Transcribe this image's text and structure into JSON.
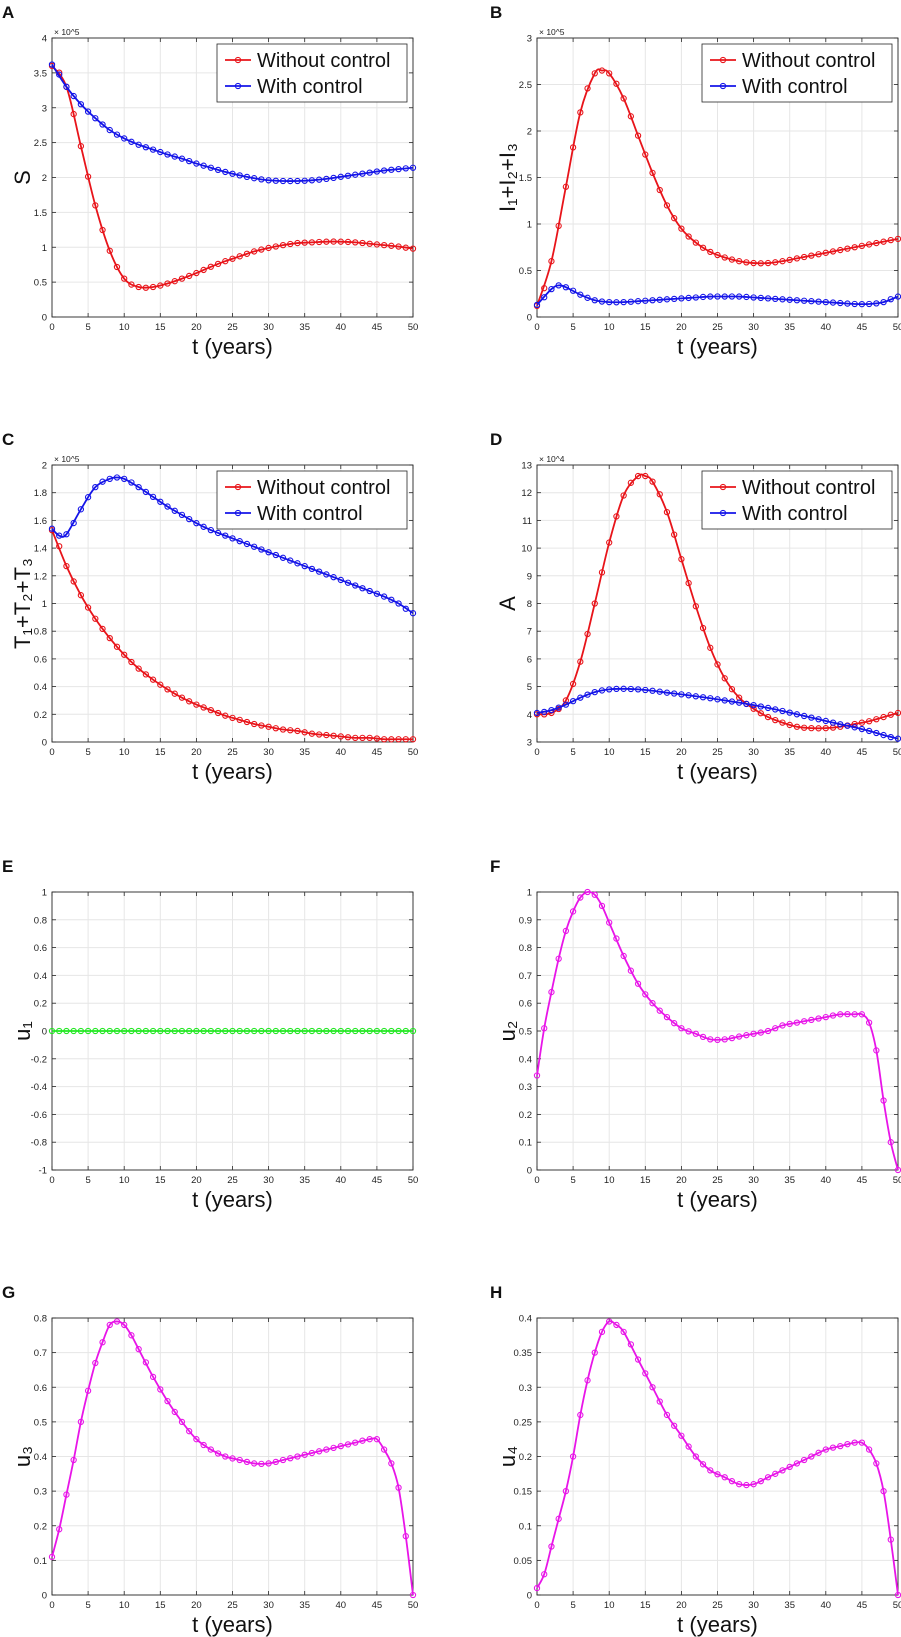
{
  "figure": {
    "panels": [
      "A",
      "B",
      "C",
      "D",
      "E",
      "F",
      "G",
      "H"
    ],
    "colors": {
      "red": "#e8141a",
      "blue": "#1414e8",
      "green": "#22e822",
      "magenta": "#e815e8",
      "grid": "#e6e6e6",
      "axis": "#262626"
    }
  },
  "chart_data": [
    {
      "id": "A",
      "type": "line",
      "panel_label": "A",
      "xlabel": "t (years)",
      "ylabel": "S",
      "y_exponent": "× 10^5",
      "xlim": [
        0,
        50
      ],
      "ylim": [
        0,
        4
      ],
      "xticks": [
        "0",
        "5",
        "10",
        "15",
        "20",
        "25",
        "30",
        "35",
        "40",
        "45",
        "50"
      ],
      "yticks": [
        "0",
        "0.5",
        "1",
        "1.5",
        "2",
        "2.5",
        "3",
        "3.5",
        "4"
      ],
      "legend": [
        "Without control",
        "With control"
      ],
      "series": [
        {
          "name": "Without control",
          "color": "red",
          "x": [
            0,
            2,
            4,
            6,
            8,
            10,
            12,
            14,
            16,
            18,
            20,
            22,
            24,
            26,
            28,
            30,
            32,
            34,
            36,
            38,
            40,
            42,
            44,
            46,
            48,
            50
          ],
          "y": [
            3.6,
            3.3,
            2.45,
            1.6,
            0.95,
            0.55,
            0.43,
            0.43,
            0.48,
            0.55,
            0.63,
            0.72,
            0.8,
            0.87,
            0.94,
            0.99,
            1.03,
            1.06,
            1.07,
            1.08,
            1.08,
            1.07,
            1.05,
            1.03,
            1.01,
            0.98
          ]
        },
        {
          "name": "With control",
          "color": "blue",
          "x": [
            0,
            2,
            4,
            6,
            8,
            10,
            12,
            14,
            16,
            18,
            20,
            22,
            24,
            26,
            28,
            30,
            32,
            34,
            36,
            38,
            40,
            42,
            44,
            46,
            48,
            50
          ],
          "y": [
            3.62,
            3.3,
            3.05,
            2.85,
            2.68,
            2.56,
            2.47,
            2.4,
            2.33,
            2.27,
            2.2,
            2.14,
            2.08,
            2.03,
            1.99,
            1.96,
            1.95,
            1.95,
            1.96,
            1.98,
            2.01,
            2.04,
            2.07,
            2.1,
            2.12,
            2.14
          ]
        }
      ]
    },
    {
      "id": "B",
      "type": "line",
      "panel_label": "B",
      "xlabel": "t (years)",
      "ylabel": "I₁+I₂+I₃",
      "y_exponent": "× 10^5",
      "xlim": [
        0,
        50
      ],
      "ylim": [
        0,
        3
      ],
      "xticks": [
        "0",
        "5",
        "10",
        "15",
        "20",
        "25",
        "30",
        "35",
        "40",
        "45",
        "50"
      ],
      "yticks": [
        "0",
        "0.5",
        "1",
        "1.5",
        "2",
        "2.5",
        "3"
      ],
      "legend": [
        "Without control",
        "With control"
      ],
      "series": [
        {
          "name": "Without control",
          "color": "red",
          "x": [
            0,
            2,
            4,
            6,
            8,
            9,
            10,
            12,
            14,
            16,
            18,
            20,
            22,
            24,
            26,
            28,
            30,
            32,
            34,
            36,
            38,
            40,
            42,
            44,
            46,
            48,
            50
          ],
          "y": [
            0.12,
            0.6,
            1.4,
            2.2,
            2.62,
            2.65,
            2.62,
            2.35,
            1.95,
            1.55,
            1.2,
            0.95,
            0.8,
            0.7,
            0.64,
            0.6,
            0.58,
            0.58,
            0.6,
            0.63,
            0.66,
            0.69,
            0.72,
            0.75,
            0.78,
            0.81,
            0.84
          ]
        },
        {
          "name": "With control",
          "color": "blue",
          "x": [
            0,
            2,
            3,
            4,
            6,
            8,
            10,
            12,
            14,
            16,
            18,
            20,
            22,
            24,
            26,
            28,
            30,
            32,
            34,
            36,
            38,
            40,
            42,
            44,
            46,
            48,
            50
          ],
          "y": [
            0.13,
            0.3,
            0.34,
            0.32,
            0.24,
            0.18,
            0.16,
            0.16,
            0.17,
            0.18,
            0.19,
            0.2,
            0.21,
            0.22,
            0.22,
            0.22,
            0.21,
            0.2,
            0.19,
            0.18,
            0.17,
            0.16,
            0.15,
            0.14,
            0.14,
            0.16,
            0.22
          ]
        }
      ]
    },
    {
      "id": "C",
      "type": "line",
      "panel_label": "C",
      "xlabel": "t (years)",
      "ylabel": "T₁+T₂+T₃",
      "y_exponent": "× 10^5",
      "xlim": [
        0,
        50
      ],
      "ylim": [
        0,
        2
      ],
      "xticks": [
        "0",
        "5",
        "10",
        "15",
        "20",
        "25",
        "30",
        "35",
        "40",
        "45",
        "50"
      ],
      "yticks": [
        "0",
        "0.2",
        "0.4",
        "0.6",
        "0.8",
        "1",
        "1.2",
        "1.4",
        "1.6",
        "1.8",
        "2"
      ],
      "legend": [
        "Without control",
        "With control"
      ],
      "series": [
        {
          "name": "Without control",
          "color": "red",
          "x": [
            0,
            2,
            4,
            6,
            8,
            10,
            12,
            14,
            16,
            18,
            20,
            22,
            24,
            26,
            28,
            30,
            32,
            34,
            36,
            38,
            40,
            42,
            44,
            46,
            48,
            50
          ],
          "y": [
            1.53,
            1.27,
            1.06,
            0.89,
            0.75,
            0.63,
            0.53,
            0.45,
            0.38,
            0.32,
            0.27,
            0.23,
            0.19,
            0.16,
            0.13,
            0.11,
            0.09,
            0.08,
            0.06,
            0.05,
            0.04,
            0.03,
            0.03,
            0.02,
            0.02,
            0.02
          ]
        },
        {
          "name": "With control",
          "color": "blue",
          "x": [
            0,
            1,
            2,
            4,
            6,
            8,
            9,
            10,
            12,
            14,
            16,
            18,
            20,
            22,
            24,
            26,
            28,
            30,
            32,
            34,
            36,
            38,
            40,
            42,
            44,
            46,
            48,
            50
          ],
          "y": [
            1.54,
            1.49,
            1.5,
            1.68,
            1.84,
            1.9,
            1.91,
            1.9,
            1.84,
            1.77,
            1.7,
            1.64,
            1.58,
            1.53,
            1.49,
            1.45,
            1.41,
            1.37,
            1.33,
            1.29,
            1.25,
            1.21,
            1.17,
            1.13,
            1.09,
            1.05,
            1.0,
            0.93
          ]
        }
      ]
    },
    {
      "id": "D",
      "type": "line",
      "panel_label": "D",
      "xlabel": "t (years)",
      "ylabel": "A",
      "y_exponent": "× 10^4",
      "xlim": [
        0,
        50
      ],
      "ylim": [
        3,
        13
      ],
      "xticks": [
        "0",
        "5",
        "10",
        "15",
        "20",
        "25",
        "30",
        "35",
        "40",
        "45",
        "50"
      ],
      "yticks": [
        "3",
        "4",
        "5",
        "6",
        "7",
        "8",
        "9",
        "10",
        "11",
        "12",
        "13"
      ],
      "legend": [
        "Without control",
        "With control"
      ],
      "series": [
        {
          "name": "Without control",
          "color": "red",
          "x": [
            0,
            2,
            4,
            6,
            8,
            10,
            12,
            14,
            15,
            16,
            18,
            20,
            22,
            24,
            26,
            28,
            30,
            32,
            34,
            36,
            38,
            40,
            42,
            44,
            46,
            48,
            50
          ],
          "y": [
            4.0,
            4.05,
            4.5,
            5.9,
            8.0,
            10.2,
            11.9,
            12.6,
            12.6,
            12.4,
            11.3,
            9.6,
            7.9,
            6.4,
            5.3,
            4.6,
            4.2,
            3.9,
            3.7,
            3.55,
            3.5,
            3.5,
            3.55,
            3.65,
            3.75,
            3.9,
            4.05
          ]
        },
        {
          "name": "With control",
          "color": "blue",
          "x": [
            0,
            2,
            4,
            6,
            8,
            10,
            12,
            14,
            16,
            18,
            20,
            22,
            24,
            26,
            28,
            30,
            32,
            34,
            36,
            38,
            40,
            42,
            44,
            46,
            48,
            50
          ],
          "y": [
            4.05,
            4.15,
            4.35,
            4.6,
            4.8,
            4.9,
            4.92,
            4.9,
            4.85,
            4.78,
            4.72,
            4.65,
            4.58,
            4.5,
            4.42,
            4.33,
            4.23,
            4.12,
            4.0,
            3.88,
            3.76,
            3.64,
            3.53,
            3.4,
            3.25,
            3.12
          ]
        }
      ]
    },
    {
      "id": "E",
      "type": "line",
      "panel_label": "E",
      "xlabel": "t (years)",
      "ylabel": "u₁",
      "xlim": [
        0,
        50
      ],
      "ylim": [
        -1,
        1
      ],
      "xticks": [
        "0",
        "5",
        "10",
        "15",
        "20",
        "25",
        "30",
        "35",
        "40",
        "45",
        "50"
      ],
      "yticks": [
        "-1",
        "-0.8",
        "-0.6",
        "-0.4",
        "-0.2",
        "0",
        "0.2",
        "0.4",
        "0.6",
        "0.8",
        "1"
      ],
      "series": [
        {
          "name": "u1",
          "color": "green",
          "x": [
            0,
            2,
            4,
            6,
            8,
            10,
            12,
            14,
            16,
            18,
            20,
            22,
            24,
            26,
            28,
            30,
            32,
            34,
            36,
            38,
            40,
            42,
            44,
            46,
            48,
            50
          ],
          "y": [
            0,
            0,
            0,
            0,
            0,
            0,
            0,
            0,
            0,
            0,
            0,
            0,
            0,
            0,
            0,
            0,
            0,
            0,
            0,
            0,
            0,
            0,
            0,
            0,
            0,
            0
          ]
        }
      ]
    },
    {
      "id": "F",
      "type": "line",
      "panel_label": "F",
      "xlabel": "t (years)",
      "ylabel": "u₂",
      "xlim": [
        0,
        50
      ],
      "ylim": [
        0,
        1
      ],
      "xticks": [
        "0",
        "5",
        "10",
        "15",
        "20",
        "25",
        "30",
        "35",
        "40",
        "45",
        "50"
      ],
      "yticks": [
        "0",
        "0.1",
        "0.2",
        "0.3",
        "0.4",
        "0.5",
        "0.6",
        "0.7",
        "0.8",
        "0.9",
        "1"
      ],
      "series": [
        {
          "name": "u2",
          "color": "magenta",
          "x": [
            0,
            1,
            2,
            3,
            4,
            5,
            6,
            7,
            8,
            9,
            10,
            12,
            14,
            16,
            18,
            20,
            22,
            24,
            26,
            28,
            30,
            32,
            34,
            36,
            38,
            40,
            42,
            44,
            45,
            46,
            47,
            48,
            49,
            50
          ],
          "y": [
            0.34,
            0.51,
            0.64,
            0.76,
            0.86,
            0.93,
            0.98,
            1.0,
            0.99,
            0.95,
            0.89,
            0.77,
            0.67,
            0.6,
            0.55,
            0.51,
            0.49,
            0.47,
            0.47,
            0.48,
            0.49,
            0.5,
            0.52,
            0.53,
            0.54,
            0.55,
            0.56,
            0.56,
            0.56,
            0.53,
            0.43,
            0.25,
            0.1,
            0.0
          ]
        }
      ]
    },
    {
      "id": "G",
      "type": "line",
      "panel_label": "G",
      "xlabel": "t (years)",
      "ylabel": "u₃",
      "xlim": [
        0,
        50
      ],
      "ylim": [
        0,
        0.8
      ],
      "xticks": [
        "0",
        "5",
        "10",
        "15",
        "20",
        "25",
        "30",
        "35",
        "40",
        "45",
        "50"
      ],
      "yticks": [
        "0",
        "0.1",
        "0.2",
        "0.3",
        "0.4",
        "0.5",
        "0.6",
        "0.7",
        "0.8"
      ],
      "series": [
        {
          "name": "u3",
          "color": "magenta",
          "x": [
            0,
            1,
            2,
            3,
            4,
            5,
            6,
            7,
            8,
            9,
            10,
            11,
            12,
            14,
            16,
            18,
            20,
            22,
            24,
            26,
            28,
            30,
            32,
            34,
            36,
            38,
            40,
            42,
            44,
            45,
            46,
            47,
            48,
            49,
            50
          ],
          "y": [
            0.11,
            0.19,
            0.29,
            0.39,
            0.5,
            0.59,
            0.67,
            0.73,
            0.78,
            0.79,
            0.78,
            0.75,
            0.71,
            0.63,
            0.56,
            0.5,
            0.45,
            0.42,
            0.4,
            0.39,
            0.38,
            0.38,
            0.39,
            0.4,
            0.41,
            0.42,
            0.43,
            0.44,
            0.45,
            0.45,
            0.42,
            0.38,
            0.31,
            0.17,
            0.0
          ]
        }
      ]
    },
    {
      "id": "H",
      "type": "line",
      "panel_label": "H",
      "xlabel": "t (years)",
      "ylabel": "u₄",
      "xlim": [
        0,
        50
      ],
      "ylim": [
        0,
        0.4
      ],
      "xticks": [
        "0",
        "5",
        "10",
        "15",
        "20",
        "25",
        "30",
        "35",
        "40",
        "45",
        "50"
      ],
      "yticks": [
        "0",
        "0.05",
        "0.1",
        "0.15",
        "0.2",
        "0.25",
        "0.3",
        "0.35",
        "0.4"
      ],
      "series": [
        {
          "name": "u4",
          "color": "magenta",
          "x": [
            0,
            1,
            2,
            3,
            4,
            5,
            6,
            7,
            8,
            9,
            10,
            11,
            12,
            14,
            16,
            18,
            20,
            22,
            24,
            26,
            28,
            30,
            32,
            34,
            36,
            38,
            40,
            42,
            44,
            45,
            46,
            47,
            48,
            49,
            50
          ],
          "y": [
            0.01,
            0.03,
            0.07,
            0.11,
            0.15,
            0.2,
            0.26,
            0.31,
            0.35,
            0.38,
            0.395,
            0.39,
            0.38,
            0.34,
            0.3,
            0.26,
            0.23,
            0.2,
            0.18,
            0.17,
            0.16,
            0.16,
            0.17,
            0.18,
            0.19,
            0.2,
            0.21,
            0.215,
            0.22,
            0.22,
            0.21,
            0.19,
            0.15,
            0.08,
            0.0
          ]
        }
      ]
    }
  ]
}
